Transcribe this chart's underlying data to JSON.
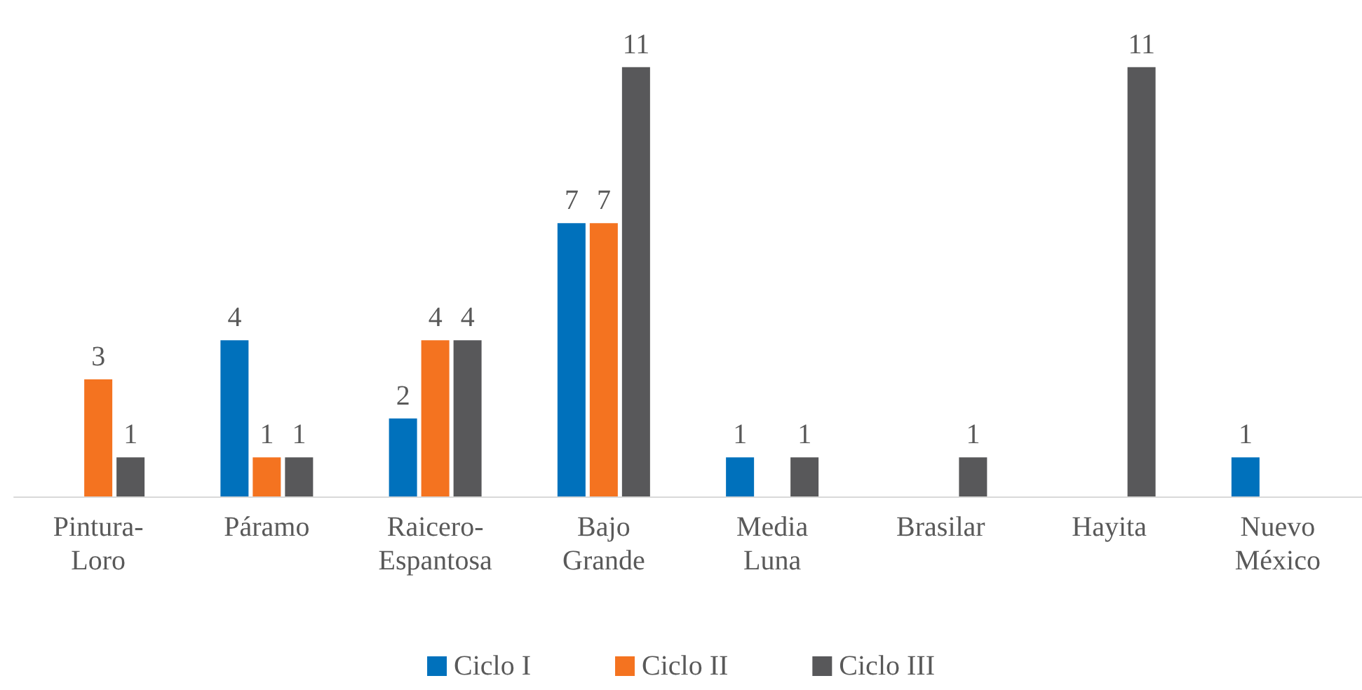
{
  "chart_data": {
    "type": "bar",
    "categories": [
      "Pintura-Loro",
      "Páramo",
      "Raicero-Espantosa",
      "Bajo Grande",
      "Media Luna",
      "Brasilar",
      "Hayita",
      "Nuevo México"
    ],
    "series": [
      {
        "name": "Ciclo I",
        "color": "#0071bc",
        "values": [
          null,
          4,
          2,
          7,
          1,
          null,
          null,
          1
        ]
      },
      {
        "name": "Ciclo II",
        "color": "#f47320",
        "values": [
          3,
          1,
          4,
          7,
          null,
          null,
          null,
          null
        ]
      },
      {
        "name": "Ciclo III",
        "color": "#58585a",
        "values": [
          1,
          1,
          4,
          11,
          1,
          1,
          11,
          null
        ]
      }
    ],
    "data_labels": true,
    "legend": "bottom"
  }
}
